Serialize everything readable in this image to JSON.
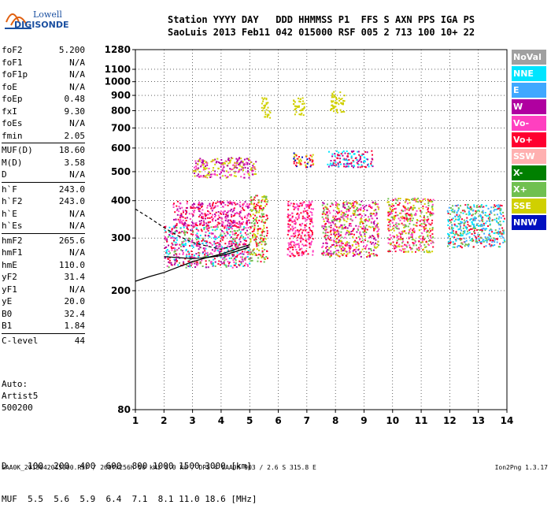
{
  "logo": {
    "line1": "Lowell",
    "line2": "DIGISONDE"
  },
  "header": {
    "row1": "Station YYYY DAY   DDD HHMMSS P1  FFS S AXN PPS IGA PS",
    "row2": "SaoLuis 2013 Feb11 042 015000 RSF 005 2 713 100 10+ 22"
  },
  "params": {
    "group1": [
      {
        "k": "foF2",
        "v": "5.200"
      },
      {
        "k": "foF1",
        "v": "N/A"
      },
      {
        "k": "foF1p",
        "v": "N/A"
      },
      {
        "k": "foE",
        "v": "N/A"
      },
      {
        "k": "foEp",
        "v": "0.48"
      },
      {
        "k": "fxI",
        "v": "9.30"
      },
      {
        "k": "foEs",
        "v": "N/A"
      },
      {
        "k": "fmin",
        "v": "2.05"
      }
    ],
    "group2": [
      {
        "k": "MUF(D)",
        "v": "18.60"
      },
      {
        "k": "M(D)",
        "v": "3.58"
      },
      {
        "k": "D",
        "v": "N/A"
      }
    ],
    "group3": [
      {
        "k": "h`F",
        "v": "243.0"
      },
      {
        "k": "h`F2",
        "v": "243.0"
      },
      {
        "k": "h`E",
        "v": "N/A"
      },
      {
        "k": "h`Es",
        "v": "N/A"
      }
    ],
    "group4": [
      {
        "k": "hmF2",
        "v": "265.6"
      },
      {
        "k": "hmF1",
        "v": "N/A"
      },
      {
        "k": "hmE",
        "v": "110.0"
      },
      {
        "k": "yF2",
        "v": "31.4"
      },
      {
        "k": "yF1",
        "v": "N/A"
      },
      {
        "k": "yE",
        "v": "20.0"
      },
      {
        "k": "B0",
        "v": "32.4"
      },
      {
        "k": "B1",
        "v": "1.84"
      }
    ],
    "group5": [
      {
        "k": "C-level",
        "v": "44"
      }
    ]
  },
  "auto": {
    "line1": "Auto:",
    "line2": "Artist5",
    "line3": "500200"
  },
  "dmuf": {
    "d_row": "D    100  200  400  600  800 1000 1500 3000 [km]",
    "muf_row": "MUF  5.5  5.6  5.9  6.4  7.1  8.1 11.0 18.6 [MHz]"
  },
  "footer": "SAA0K_2013042015000.RSF / 260fx256h 50 kHz 5.0 km / DPS-4 SAA0K 903 / 2.6 S 315.8 E",
  "version": "Ion2Png 1.3.17",
  "legend": [
    {
      "label": "NoVal",
      "color": "#a0a0a0"
    },
    {
      "label": "NNE",
      "color": "#00e5ff"
    },
    {
      "label": "E",
      "color": "#40a8ff"
    },
    {
      "label": "W",
      "color": "#b000a0"
    },
    {
      "label": "Vo-",
      "color": "#ff40c0"
    },
    {
      "label": "Vo+",
      "color": "#ff0030"
    },
    {
      "label": "SSW",
      "color": "#ffb0b0"
    },
    {
      "label": "X-",
      "color": "#008000"
    },
    {
      "label": "X+",
      "color": "#70c050"
    },
    {
      "label": "SSE",
      "color": "#d0d000"
    },
    {
      "label": "NNW",
      "color": "#0010c0"
    }
  ],
  "chart_data": {
    "type": "scatter",
    "xlim": [
      1,
      14
    ],
    "ylim": [
      80,
      1280
    ],
    "x_ticks": [
      1,
      2,
      3,
      4,
      5,
      6,
      7,
      8,
      9,
      10,
      11,
      12,
      13,
      14
    ],
    "y_ticks": [
      80,
      200,
      300,
      400,
      500,
      600,
      700,
      800,
      900,
      1000,
      1100,
      1280
    ],
    "y_scale": "log",
    "grid": true,
    "legend_position": "right",
    "clusters": [
      {
        "x": [
          2.0,
          5.0
        ],
        "y": [
          240,
          330
        ],
        "colors": [
          "#ff0030",
          "#b000a0",
          "#ff40c0",
          "#70c050",
          "#00e5ff"
        ]
      },
      {
        "x": [
          2.3,
          5.0
        ],
        "y": [
          330,
          400
        ],
        "colors": [
          "#ff0030",
          "#ff40c0",
          "#b000a0"
        ]
      },
      {
        "x": [
          3.0,
          5.2
        ],
        "y": [
          480,
          560
        ],
        "colors": [
          "#b000a0",
          "#ff40c0",
          "#d0d000"
        ]
      },
      {
        "x": [
          5.0,
          5.6
        ],
        "y": [
          250,
          420
        ],
        "colors": [
          "#70c050",
          "#d0d000",
          "#ff0030"
        ]
      },
      {
        "x": [
          5.4,
          5.7
        ],
        "y": [
          760,
          890
        ],
        "colors": [
          "#d0d000"
        ]
      },
      {
        "x": [
          6.3,
          7.2
        ],
        "y": [
          260,
          400
        ],
        "colors": [
          "#ff0030",
          "#ff40c0"
        ]
      },
      {
        "x": [
          6.5,
          6.9
        ],
        "y": [
          770,
          890
        ],
        "colors": [
          "#d0d000"
        ]
      },
      {
        "x": [
          6.5,
          7.2
        ],
        "y": [
          520,
          580
        ],
        "colors": [
          "#ff0030",
          "#0010c0",
          "#d0d000"
        ]
      },
      {
        "x": [
          7.5,
          9.5
        ],
        "y": [
          260,
          400
        ],
        "colors": [
          "#ff0030",
          "#ff40c0",
          "#70c050",
          "#b000a0",
          "#d0d000"
        ]
      },
      {
        "x": [
          7.8,
          8.3
        ],
        "y": [
          790,
          930
        ],
        "colors": [
          "#d0d000"
        ]
      },
      {
        "x": [
          7.7,
          9.3
        ],
        "y": [
          520,
          590
        ],
        "colors": [
          "#ff0030",
          "#b000a0",
          "#00e5ff"
        ]
      },
      {
        "x": [
          9.8,
          11.4
        ],
        "y": [
          270,
          410
        ],
        "colors": [
          "#ff0030",
          "#70c050",
          "#d0d000",
          "#ff40c0"
        ]
      },
      {
        "x": [
          11.9,
          13.9
        ],
        "y": [
          280,
          390
        ],
        "colors": [
          "#00e5ff",
          "#40a8ff",
          "#ff0030",
          "#70c050"
        ]
      }
    ],
    "traces": [
      {
        "x": [
          1.0,
          1.5,
          2.0,
          2.5,
          3.0,
          3.5,
          4.0,
          4.5,
          5.0
        ],
        "y": [
          215,
          223,
          230,
          240,
          250,
          258,
          265,
          275,
          285
        ]
      },
      {
        "x": [
          1.0,
          1.5,
          2.0,
          2.5,
          3.0,
          3.5,
          4.0,
          4.5
        ],
        "y": [
          375,
          350,
          325,
          305,
          290,
          282,
          275,
          285
        ]
      },
      {
        "x": [
          2.0,
          2.5,
          3.0,
          3.5,
          4.0,
          4.5,
          5.0
        ],
        "y": [
          260,
          258,
          256,
          258,
          262,
          270,
          280
        ]
      }
    ]
  }
}
